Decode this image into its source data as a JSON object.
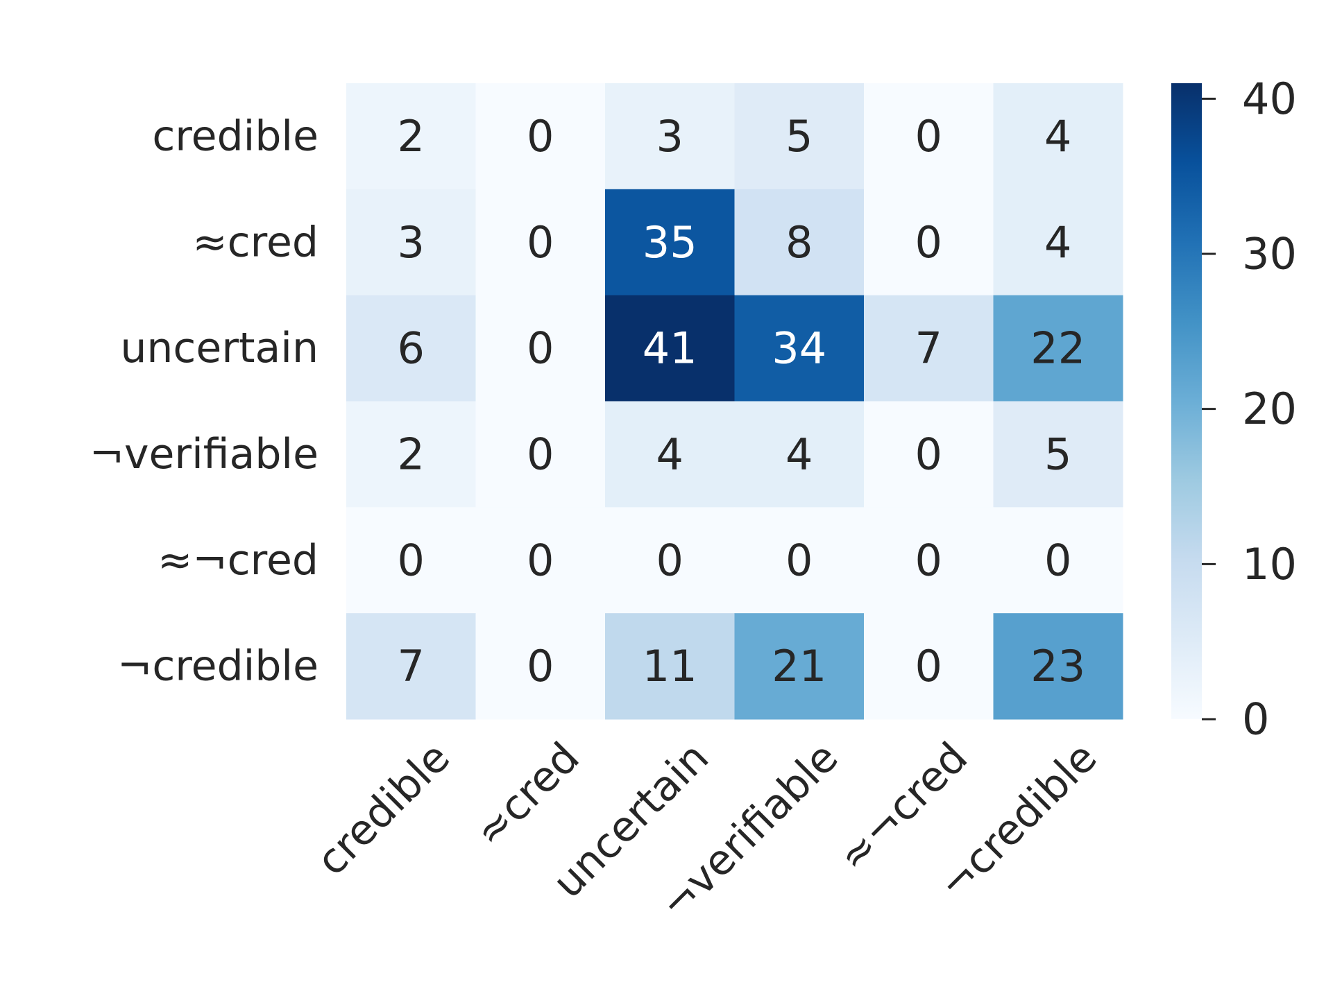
{
  "chart_data": {
    "type": "heatmap",
    "x": [
      "credible",
      "≈cred",
      "uncertain",
      "¬verifiable",
      "≈¬cred",
      "¬credible"
    ],
    "y": [
      "credible",
      "≈cred",
      "uncertain",
      "¬verifiable",
      "≈¬cred",
      "¬credible"
    ],
    "values": [
      [
        2,
        0,
        3,
        5,
        0,
        4
      ],
      [
        3,
        0,
        35,
        8,
        0,
        4
      ],
      [
        6,
        0,
        41,
        34,
        7,
        22
      ],
      [
        2,
        0,
        4,
        4,
        0,
        5
      ],
      [
        0,
        0,
        0,
        0,
        0,
        0
      ],
      [
        7,
        0,
        11,
        21,
        0,
        23
      ]
    ],
    "colorscale": [
      "#f7fbff",
      "#deebf7",
      "#c6dbef",
      "#9ecae1",
      "#6baed6",
      "#4292c6",
      "#2171b5",
      "#08519c",
      "#08306b"
    ],
    "clim": [
      0,
      41
    ],
    "cticks": [
      0,
      10,
      20,
      30,
      40
    ]
  }
}
